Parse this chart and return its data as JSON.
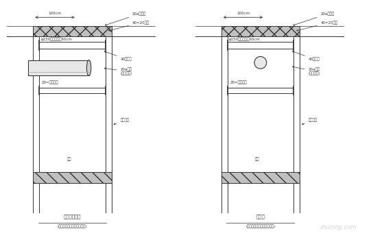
{
  "bg_color": "#ffffff",
  "lc": "#333333",
  "fig_w": 5.6,
  "fig_h": 3.53,
  "dpi": 100,
  "diagrams": [
    {
      "title": "标准断面示意",
      "subtitle": "(适用于管径范围最宽处示例)",
      "has_large_pipe": true
    },
    {
      "title": "窄断面",
      "subtitle": "(适用于管径范围最窄处示例)",
      "has_large_pipe": false
    }
  ],
  "label_dim": "100cm",
  "label_pipe_top": "φ150厚内径接头60cm",
  "label_top_annot1": "20a槽钉板",
  "label_top_annot2": "40=20底板",
  "label_angle": "40号转盘",
  "label_beam": "20a槽钉\n(间距任意)",
  "label_press": "20=槽钉压应",
  "label_support": "配套支撑",
  "label_base": "底板",
  "watermark": "zhulong.com"
}
